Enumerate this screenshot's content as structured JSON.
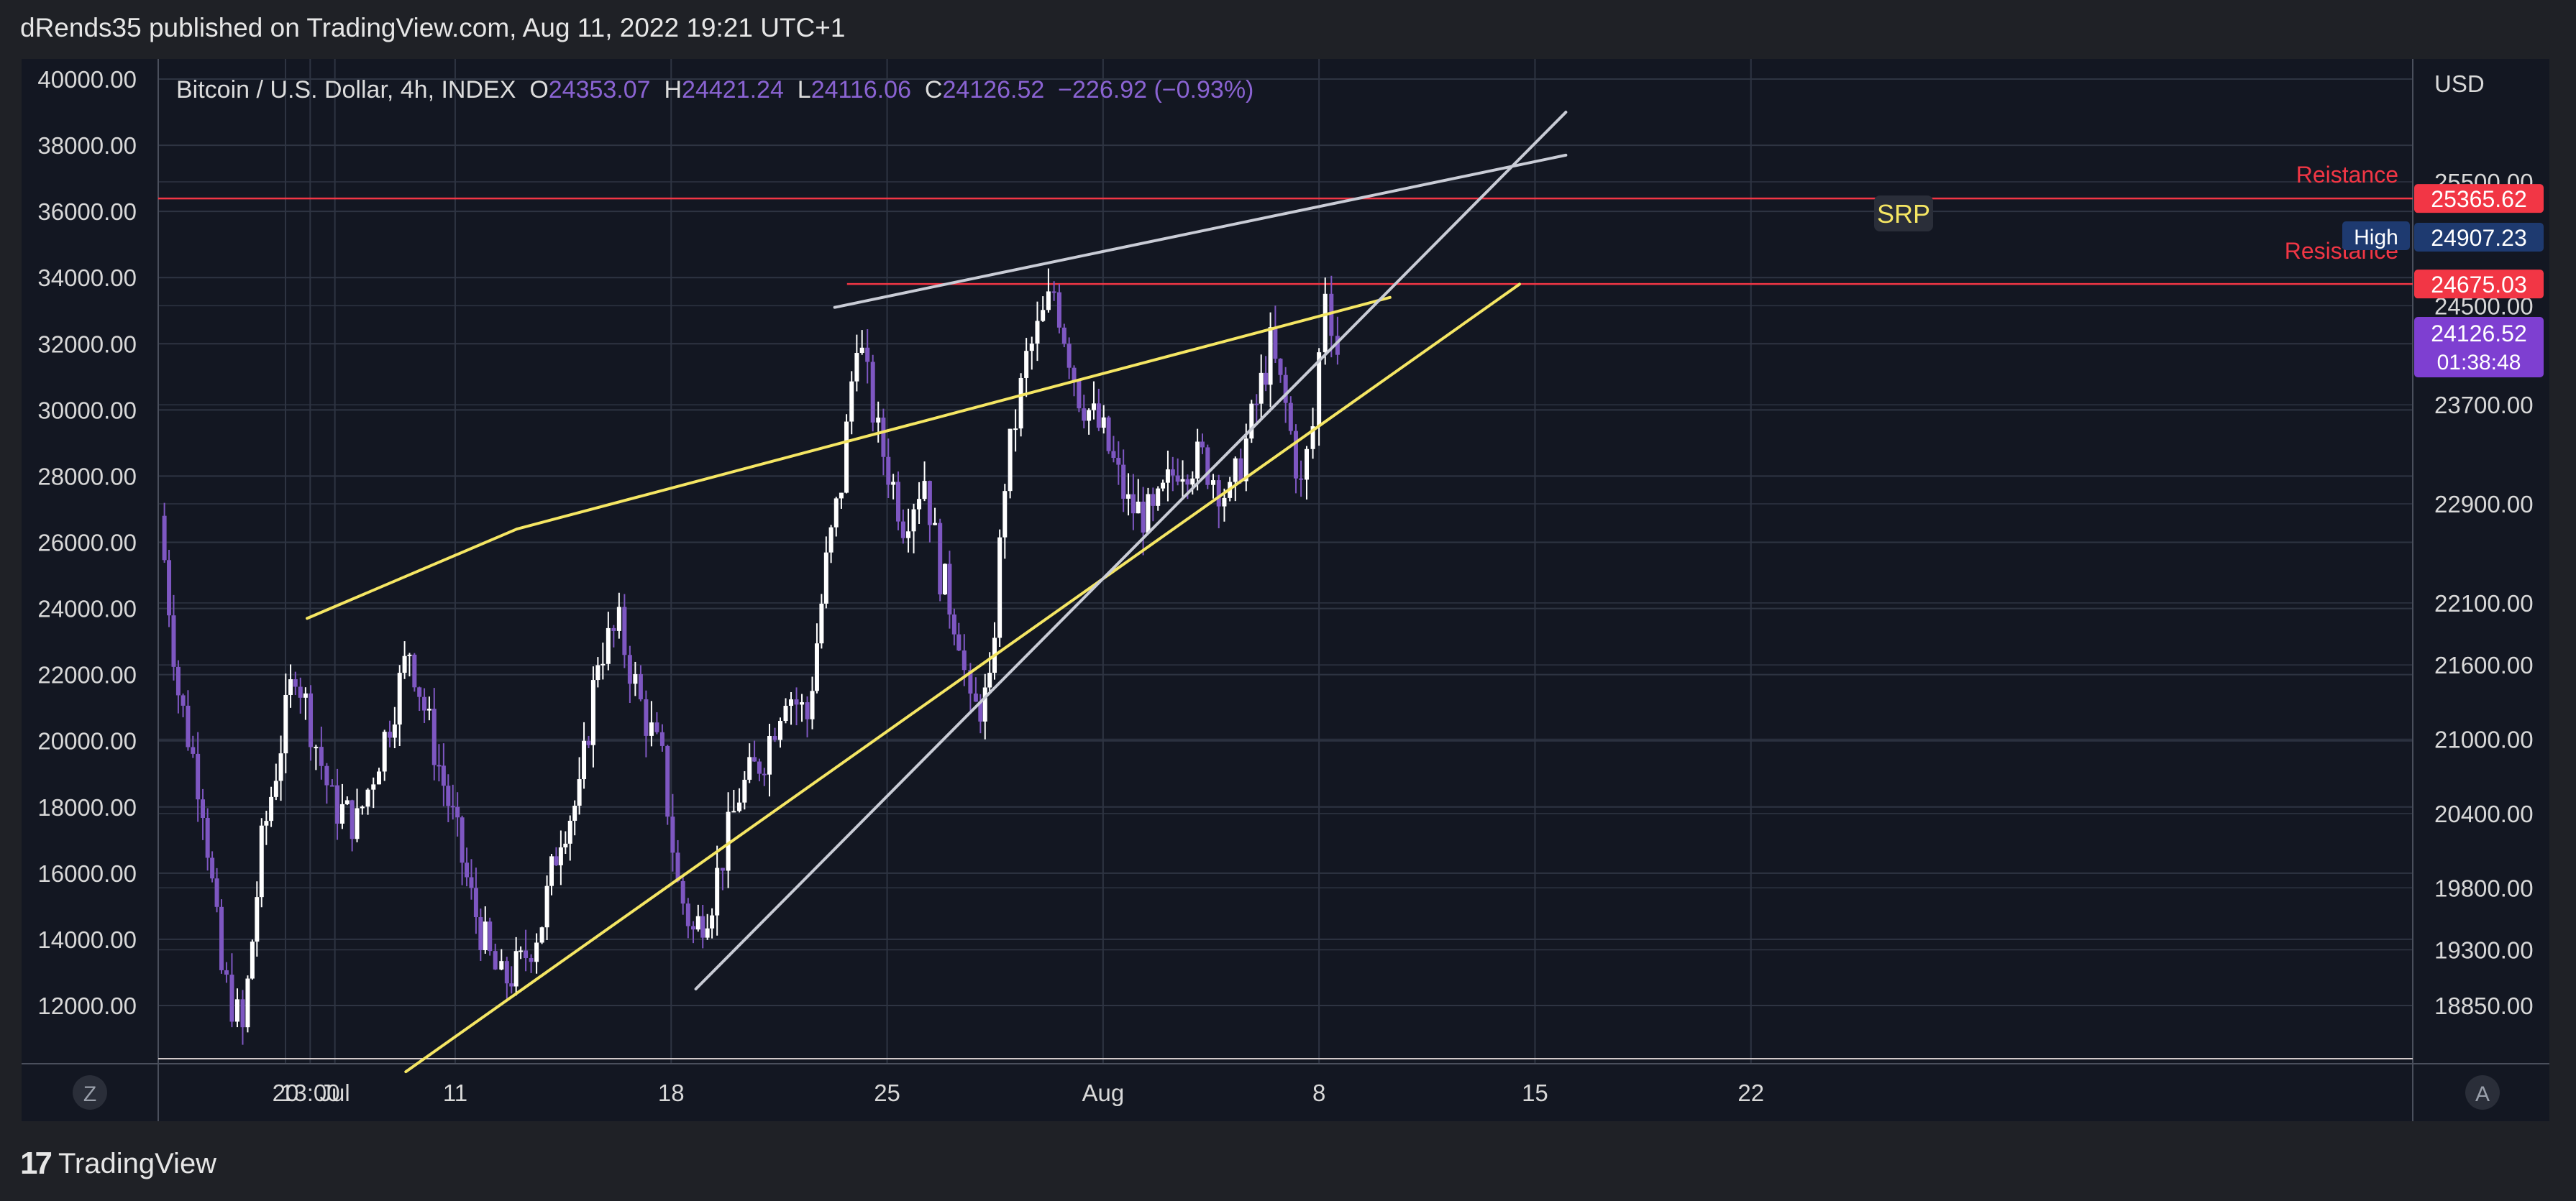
{
  "publisher_line": "dRends35 published on TradingView.com, Aug 11, 2022 19:21 UTC+1",
  "brand": {
    "logo": "17",
    "name": "TradingView"
  },
  "header": {
    "symbol": "Bitcoin / U.S. Dollar, 4h, INDEX",
    "o_label": "O",
    "o_value": "24353.07",
    "h_label": "H",
    "h_value": "24421.24",
    "l_label": "L",
    "l_value": "24116.06",
    "c_label": "C",
    "c_value": "24126.52",
    "change": "−226.92 (−0.93%)"
  },
  "colors": {
    "background": "#131722",
    "outer": "#1f2126",
    "grid": "#2e3442",
    "candle": "#ffffff",
    "candle_down": "#7e57c2",
    "yellow": "#f5e663",
    "white_line": "#c9ccd6",
    "red": "#f23645",
    "purple": "#7e3fd1",
    "navy": "#1e3a70"
  },
  "chart_data": {
    "type": "candlestick",
    "title": "Bitcoin / U.S. Dollar, 4h, INDEX",
    "left_axis_ticks": [
      "40000.00",
      "38000.00",
      "36000.00",
      "34000.00",
      "32000.00",
      "30000.00",
      "28000.00",
      "26000.00",
      "24000.00",
      "22000.00",
      "20000.00",
      "18000.00",
      "16000.00",
      "14000.00",
      "12000.00"
    ],
    "left_axis_values": [
      40000,
      38000,
      36000,
      34000,
      32000,
      30000,
      28000,
      26000,
      24000,
      22000,
      20000,
      18000,
      16000,
      14000,
      12000
    ],
    "right_axis_label": "USD",
    "right_axis_ticks": [
      "25500.00",
      "24500.00",
      "23700.00",
      "22900.00",
      "22100.00",
      "21600.00",
      "21000.00",
      "20400.00",
      "19800.00",
      "19300.00",
      "18850.00"
    ],
    "right_axis_values": [
      25500,
      24500,
      23700,
      22900,
      22100,
      21600,
      21000,
      20400,
      19800,
      19300,
      18850
    ],
    "x_ticks": [
      {
        "label": "20",
        "day": 0
      },
      {
        "label": "13:00",
        "day": 0.8
      },
      {
        "label": "Jul",
        "day": 1.6
      },
      {
        "label": "11",
        "day": 5.5
      },
      {
        "label": "18",
        "day": 12.5
      },
      {
        "label": "25",
        "day": 19.5
      },
      {
        "label": "Aug",
        "day": 26.5
      },
      {
        "label": "8",
        "day": 33.5
      },
      {
        "label": "15",
        "day": 40.5
      },
      {
        "label": "22",
        "day": 47.5
      }
    ],
    "x_axis_buttons": {
      "left": "Z",
      "right": "A"
    },
    "price_path": [
      [
        -4.0,
        26800
      ],
      [
        -3.4,
        21500
      ],
      [
        -2.6,
        18200
      ],
      [
        -2.0,
        13000
      ],
      [
        -1.3,
        11200
      ],
      [
        -0.7,
        16800
      ],
      [
        0.4,
        22300
      ],
      [
        0.9,
        20500
      ],
      [
        1.6,
        18100
      ],
      [
        2.4,
        17500
      ],
      [
        3.3,
        20100
      ],
      [
        4.1,
        22800
      ],
      [
        4.9,
        19800
      ],
      [
        5.5,
        17600
      ],
      [
        6.1,
        15200
      ],
      [
        6.7,
        13400
      ],
      [
        7.1,
        12700
      ],
      [
        7.7,
        13200
      ],
      [
        8.4,
        14600
      ],
      [
        9.0,
        17300
      ],
      [
        9.6,
        18300
      ],
      [
        10.2,
        22600
      ],
      [
        10.9,
        23400
      ],
      [
        11.6,
        21100
      ],
      [
        12.3,
        19300
      ],
      [
        12.8,
        15600
      ],
      [
        13.3,
        14200
      ],
      [
        13.9,
        15300
      ],
      [
        14.8,
        18400
      ],
      [
        15.6,
        19600
      ],
      [
        16.3,
        21600
      ],
      [
        17.0,
        20700
      ],
      [
        17.6,
        25300
      ],
      [
        18.1,
        27800
      ],
      [
        18.6,
        32400
      ],
      [
        19.3,
        29200
      ],
      [
        20.1,
        26700
      ],
      [
        20.8,
        28000
      ],
      [
        21.3,
        25100
      ],
      [
        21.9,
        23300
      ],
      [
        22.3,
        20800
      ],
      [
        22.9,
        21400
      ],
      [
        23.4,
        27900
      ],
      [
        24.1,
        31500
      ],
      [
        25.0,
        33600
      ],
      [
        25.8,
        30500
      ],
      [
        26.6,
        29200
      ],
      [
        27.4,
        27100
      ],
      [
        28.2,
        26700
      ],
      [
        29.0,
        28400
      ],
      [
        29.8,
        28500
      ],
      [
        30.7,
        27300
      ],
      [
        31.4,
        29600
      ],
      [
        32.0,
        31900
      ],
      [
        32.5,
        30100
      ],
      [
        33.0,
        27600
      ],
      [
        33.4,
        29500
      ],
      [
        33.8,
        33800
      ],
      [
        34.2,
        31800
      ]
    ],
    "current_price": 24126.52,
    "labels": {
      "resistance_1": {
        "text": "Reistance",
        "price": 25365.62,
        "tag": "25365.62"
      },
      "resistance_2": {
        "text": "Resistance",
        "price": 24675.03,
        "tag": "24675.03"
      },
      "high": {
        "text": "High",
        "tag": "24907.23"
      },
      "last": {
        "tag": "24126.52",
        "countdown": "01:38:48"
      },
      "srp": "SRP"
    }
  }
}
